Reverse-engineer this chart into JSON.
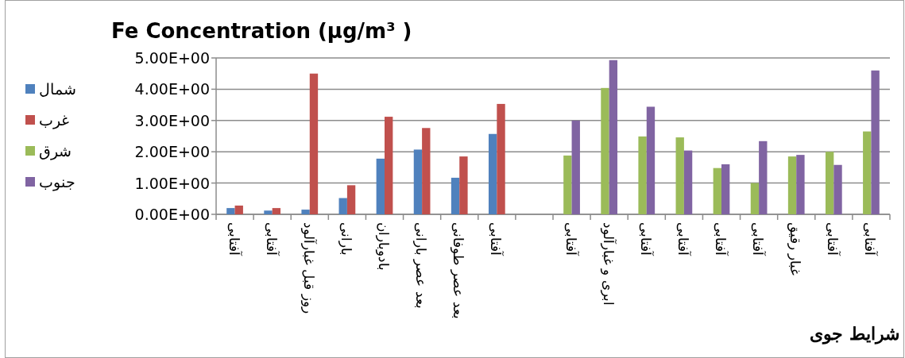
{
  "chart_data": {
    "type": "bar",
    "title": "Fe Concentration (µg/m³ )",
    "xlabel": "شرایط جوی",
    "categories": [
      "آفتابی",
      "آفتابی",
      "روز قبل غبارآلود",
      "بارانی",
      "بادوباران",
      "بعد عصر بارانی",
      "بعد عصر طوفانی",
      "آفتابی",
      null,
      "آفتابی",
      "ابری و غبارآلود",
      "آفتابی",
      "آفتابی",
      "آفتابی",
      "آفتابی",
      "غبار رقیق",
      "آفتابی",
      "آفتابی"
    ],
    "series": [
      {
        "name": "شمال",
        "color": "#4f81bd",
        "values": [
          0.2,
          0.12,
          0.15,
          0.52,
          1.78,
          2.07,
          1.17,
          2.57,
          null,
          null,
          null,
          null,
          null,
          null,
          null,
          null,
          null,
          null
        ]
      },
      {
        "name": "غرب",
        "color": "#c0504d",
        "values": [
          0.28,
          0.2,
          4.5,
          0.93,
          3.12,
          2.76,
          1.85,
          3.53,
          null,
          null,
          null,
          null,
          null,
          null,
          null,
          null,
          null,
          null
        ]
      },
      {
        "name": "شرق",
        "color": "#9bbb59",
        "values": [
          null,
          null,
          null,
          null,
          null,
          null,
          null,
          null,
          null,
          1.88,
          4.04,
          2.49,
          2.46,
          1.48,
          1.0,
          1.85,
          2.0,
          2.65
        ]
      },
      {
        "name": "جنوب",
        "color": "#8064a2",
        "values": [
          null,
          null,
          null,
          null,
          null,
          null,
          null,
          null,
          null,
          3.0,
          4.93,
          3.44,
          2.04,
          1.6,
          2.34,
          1.9,
          1.58,
          4.6
        ]
      }
    ],
    "ylim": [
      0,
      5
    ],
    "yticks": [
      {
        "value": 0,
        "label": "0.00E+00"
      },
      {
        "value": 1,
        "label": "1.00E+00"
      },
      {
        "value": 2,
        "label": "2.00E+00"
      },
      {
        "value": 3,
        "label": "3.00E+00"
      },
      {
        "value": 4,
        "label": "4.00E+00"
      },
      {
        "value": 5,
        "label": "5.00E+00"
      }
    ],
    "grid": "y",
    "legend": "left"
  }
}
